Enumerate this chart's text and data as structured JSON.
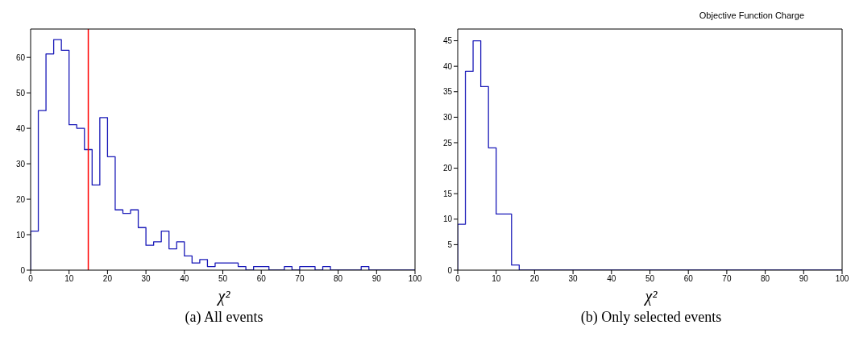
{
  "chart_data": [
    {
      "type": "histogram",
      "xlabel": "χ²",
      "color": "#1a1ab8",
      "bins": [
        0,
        2,
        4,
        6,
        8,
        10,
        12,
        14,
        16,
        18,
        20,
        22,
        24,
        26,
        28,
        30,
        32,
        34,
        36,
        38,
        40,
        42,
        44,
        46,
        48,
        50,
        52,
        54,
        56,
        58,
        60,
        62,
        64,
        66,
        68,
        70,
        72,
        74,
        76,
        78,
        80,
        82,
        84,
        86,
        88,
        90,
        92,
        94,
        96,
        98,
        100
      ],
      "values": [
        11,
        45,
        61,
        65,
        62,
        41,
        40,
        34,
        24,
        43,
        32,
        17,
        16,
        17,
        12,
        7,
        8,
        11,
        6,
        8,
        4,
        2,
        3,
        1,
        2,
        2,
        2,
        1,
        0,
        1,
        1,
        0,
        0,
        1,
        0,
        1,
        1,
        0,
        1,
        0,
        0,
        0,
        0,
        1,
        0,
        0,
        0,
        0,
        0,
        0
      ],
      "xlim": [
        0,
        100
      ],
      "xticks": [
        0,
        10,
        20,
        30,
        40,
        50,
        60,
        70,
        80,
        90,
        100
      ],
      "ylim": [
        0,
        68
      ],
      "yticks": [
        0,
        10,
        20,
        30,
        40,
        50,
        60
      ],
      "ref_lines": [
        {
          "axis": "x",
          "value": 15,
          "color": "#ff0000"
        }
      ],
      "annotations": [
        "(a) All events"
      ]
    },
    {
      "type": "histogram",
      "title": "Objective Function Charge",
      "xlabel": "χ²",
      "color": "#1a1ab8",
      "bins": [
        0,
        2,
        4,
        6,
        8,
        10,
        12,
        14,
        16,
        18,
        20,
        22,
        24,
        26,
        28,
        30,
        32,
        34,
        36,
        38,
        40,
        42,
        44,
        46,
        48,
        50,
        52,
        54,
        56,
        58,
        60,
        62,
        64,
        66,
        68,
        70,
        72,
        74,
        76,
        78,
        80,
        82,
        84,
        86,
        88,
        90,
        92,
        94,
        96,
        98,
        100
      ],
      "values": [
        9,
        39,
        45,
        36,
        24,
        11,
        11,
        1,
        0,
        0,
        0,
        0,
        0,
        0,
        0,
        0,
        0,
        0,
        0,
        0,
        0,
        0,
        0,
        0,
        0,
        0,
        0,
        0,
        0,
        0,
        0,
        0,
        0,
        0,
        0,
        0,
        0,
        0,
        0,
        0,
        0,
        0,
        0,
        0,
        0,
        0,
        0,
        0,
        0,
        0
      ],
      "xlim": [
        0,
        100
      ],
      "xticks": [
        0,
        10,
        20,
        30,
        40,
        50,
        60,
        70,
        80,
        90,
        100
      ],
      "ylim": [
        0,
        47.3
      ],
      "yticks": [
        0,
        5,
        10,
        15,
        20,
        25,
        30,
        35,
        40,
        45
      ],
      "annotations": [
        "(b) Only selected events"
      ]
    }
  ]
}
